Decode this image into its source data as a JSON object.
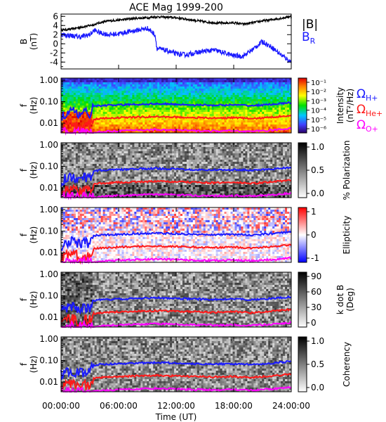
{
  "figure": {
    "title": "ACE Mag 1999-200"
  },
  "chart_data": {
    "type": "multi-panel",
    "title": "ACE Mag 1999-200",
    "x_axis": {
      "label": "Time (UT)",
      "range_hours": [
        0,
        24
      ],
      "ticks": [
        "00:00:00",
        "06:00:00",
        "12:00:00",
        "18:00:00",
        "24:00:00"
      ]
    },
    "line_panel": {
      "type": "line",
      "ylabel_top": "B",
      "ylabel_bottom": "(nT)",
      "ylim": [
        -5.5,
        6.5
      ],
      "yticks": [
        "6",
        "4",
        "2",
        "0",
        "-2",
        "-4"
      ],
      "series": [
        {
          "name": "|B|",
          "color": "#000000",
          "x": [
            0,
            1,
            2,
            3,
            3.5,
            4,
            5,
            6,
            7,
            8,
            9,
            10,
            11,
            12,
            13,
            14,
            15,
            16,
            17,
            18,
            19,
            20,
            21,
            22,
            23,
            24
          ],
          "y": [
            3.0,
            3.2,
            3.6,
            4.0,
            4.2,
            4.6,
            5.0,
            5.2,
            5.4,
            5.6,
            5.7,
            5.9,
            5.8,
            5.7,
            5.4,
            5.1,
            4.8,
            4.6,
            4.5,
            4.6,
            4.3,
            4.6,
            5.0,
            5.3,
            5.6,
            6.0
          ]
        },
        {
          "name": "B_R",
          "color": "#1a1aff",
          "x": [
            0,
            1,
            2,
            3,
            3.5,
            4,
            5,
            6,
            7,
            8,
            9,
            9.8,
            10,
            11,
            12,
            13,
            14,
            15,
            16,
            17,
            18,
            19,
            20,
            21,
            22,
            23,
            24
          ],
          "y": [
            2.0,
            1.8,
            1.5,
            2.0,
            3.0,
            2.4,
            2.0,
            2.2,
            2.6,
            3.0,
            3.4,
            2.0,
            -1.0,
            -1.5,
            -2.2,
            -2.4,
            -2.0,
            -1.6,
            -1.4,
            -2.0,
            -2.6,
            -2.7,
            -1.2,
            0.5,
            -0.8,
            -2.5,
            -4.0
          ]
        }
      ]
    },
    "spectrogram_panels": [
      {
        "name": "Intensity",
        "ylabel_top": "f",
        "ylabel_bottom": "(Hz)",
        "yticks": [
          "1.00",
          "0.10",
          "0.01"
        ],
        "colorbar_label_top": "Intensity",
        "colorbar_label_bottom": "(nT²/Hz)",
        "colorbar_ticks": [
          "10⁻¹",
          "10⁻²",
          "10⁻³",
          "10⁻⁴",
          "10⁻⁵",
          "10⁻⁶"
        ],
        "legend": [
          {
            "symbol": "Ω",
            "sub": "H+",
            "color": "#1a1aff"
          },
          {
            "symbol": "Ω",
            "sub": "He+",
            "color": "#ff1a1a"
          },
          {
            "symbol": "Ω",
            "sub": "O+",
            "color": "#ff00ff"
          }
        ]
      },
      {
        "name": "Polarization",
        "ylabel_top": "f",
        "ylabel_bottom": "(Hz)",
        "yticks": [
          "1.00",
          "0.10",
          "0.01"
        ],
        "colorbar_label_top": "% Polarization",
        "colorbar_label_bottom": "",
        "colorbar_ticks": [
          "1.0",
          "0.5",
          "0.0"
        ]
      },
      {
        "name": "Ellipticity",
        "ylabel_top": "f",
        "ylabel_bottom": "(Hz)",
        "yticks": [
          "1.00",
          "0.10",
          "0.01"
        ],
        "colorbar_label_top": "Ellipticity",
        "colorbar_label_bottom": "",
        "colorbar_ticks": [
          "1",
          "0",
          "-1"
        ]
      },
      {
        "name": "k dot B",
        "ylabel_top": "f",
        "ylabel_bottom": "(Hz)",
        "yticks": [
          "1.00",
          "0.10",
          "0.01"
        ],
        "colorbar_label_top": "k dot B",
        "colorbar_label_bottom": "(Deg)",
        "colorbar_ticks": [
          "90",
          "60",
          "30",
          "0"
        ]
      },
      {
        "name": "Coherency",
        "ylabel_top": "f",
        "ylabel_bottom": "(Hz)",
        "yticks": [
          "1.00",
          "0.10",
          "0.01"
        ],
        "colorbar_label_top": "Coherency",
        "colorbar_label_bottom": "",
        "colorbar_ticks": [
          "1.0",
          "0.5",
          "0.0"
        ]
      }
    ],
    "gyrofrequency_curves": [
      {
        "name": "H+",
        "color": "#1a1aff",
        "x": [
          0,
          1,
          2,
          3,
          3.4,
          4,
          6,
          8,
          10,
          12,
          14,
          16,
          18,
          20,
          22,
          24
        ],
        "y_hz": [
          0.02,
          0.035,
          0.025,
          0.03,
          0.06,
          0.065,
          0.07,
          0.075,
          0.08,
          0.075,
          0.07,
          0.068,
          0.07,
          0.065,
          0.075,
          0.09
        ]
      },
      {
        "name": "He+",
        "color": "#ff1a1a",
        "x": [
          0,
          1,
          2,
          3,
          3.4,
          4,
          6,
          8,
          10,
          12,
          14,
          16,
          18,
          20,
          22,
          24
        ],
        "y_hz": [
          0.005,
          0.009,
          0.006,
          0.008,
          0.015,
          0.016,
          0.018,
          0.019,
          0.02,
          0.019,
          0.018,
          0.017,
          0.018,
          0.016,
          0.019,
          0.023
        ]
      },
      {
        "name": "O+",
        "color": "#ff00ff",
        "x": [
          0,
          3.4,
          4,
          6,
          8,
          10,
          12,
          14,
          16,
          18,
          20,
          22,
          24
        ],
        "y_hz": [
          0.0035,
          0.0035,
          0.0039,
          0.0044,
          0.0047,
          0.005,
          0.0047,
          0.0044,
          0.0042,
          0.0044,
          0.0041,
          0.0047,
          0.0056
        ]
      }
    ],
    "legend_top": [
      {
        "label": "|B|",
        "color": "#000000"
      },
      {
        "label": "B",
        "sub": "R",
        "color": "#1a1aff"
      }
    ]
  }
}
